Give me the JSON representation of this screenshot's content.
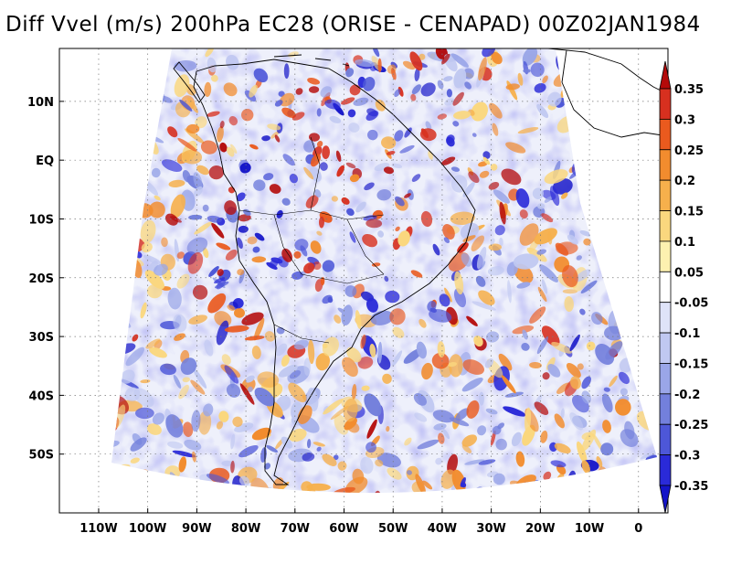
{
  "title": "Diff Vvel (m/s) 200hPa EC28 (ORISE - CENAPAD) 00Z02JAN1984",
  "map": {
    "variable": "Diff Vvel",
    "units": "m/s",
    "level": "200hPa",
    "experiment": "EC28",
    "comparison": "ORISE - CENAPAD",
    "time": "00Z02JAN1984",
    "lon_range": [
      -118,
      6
    ],
    "lat_range": [
      -60,
      19
    ],
    "lat_labels": [
      {
        "value": 10,
        "label": "10N"
      },
      {
        "value": 0,
        "label": "EQ"
      },
      {
        "value": -10,
        "label": "10S"
      },
      {
        "value": -20,
        "label": "20S"
      },
      {
        "value": -30,
        "label": "30S"
      },
      {
        "value": -40,
        "label": "40S"
      },
      {
        "value": -50,
        "label": "50S"
      }
    ],
    "lon_labels": [
      {
        "value": -110,
        "label": "110W"
      },
      {
        "value": -100,
        "label": "100W"
      },
      {
        "value": -90,
        "label": "90W"
      },
      {
        "value": -80,
        "label": "80W"
      },
      {
        "value": -70,
        "label": "70W"
      },
      {
        "value": -60,
        "label": "60W"
      },
      {
        "value": -50,
        "label": "50W"
      },
      {
        "value": -40,
        "label": "40W"
      },
      {
        "value": -30,
        "label": "30W"
      },
      {
        "value": -20,
        "label": "20W"
      },
      {
        "value": -10,
        "label": "10W"
      },
      {
        "value": 0,
        "label": "0"
      }
    ]
  },
  "colorbar": {
    "levels": [
      "0.35",
      "0.3",
      "0.25",
      "0.2",
      "0.15",
      "0.1",
      "0.05",
      "-0.05",
      "-0.1",
      "-0.15",
      "-0.2",
      "-0.25",
      "-0.3",
      "-0.35"
    ],
    "colors": [
      "#b40a0a",
      "#d7301f",
      "#ea5a1e",
      "#f28c2e",
      "#f6b04c",
      "#fad77e",
      "#fdf1b0",
      "#ffffff",
      "#dfe3f8",
      "#c0c8f1",
      "#9aa6e8",
      "#7380dc",
      "#4d57d8",
      "#2a2ad8",
      "#1414c8"
    ]
  }
}
